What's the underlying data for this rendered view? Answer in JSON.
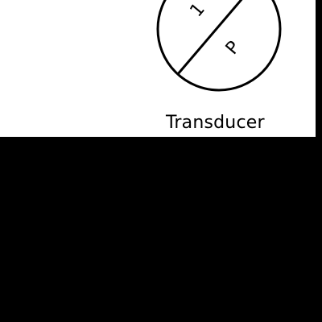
{
  "diagram": {
    "symbol": {
      "upper_label": "1",
      "lower_label": "P"
    },
    "caption": "Transducer"
  },
  "colors": {
    "panel": "#ffffff",
    "line": "#000000",
    "background": "#000000"
  }
}
